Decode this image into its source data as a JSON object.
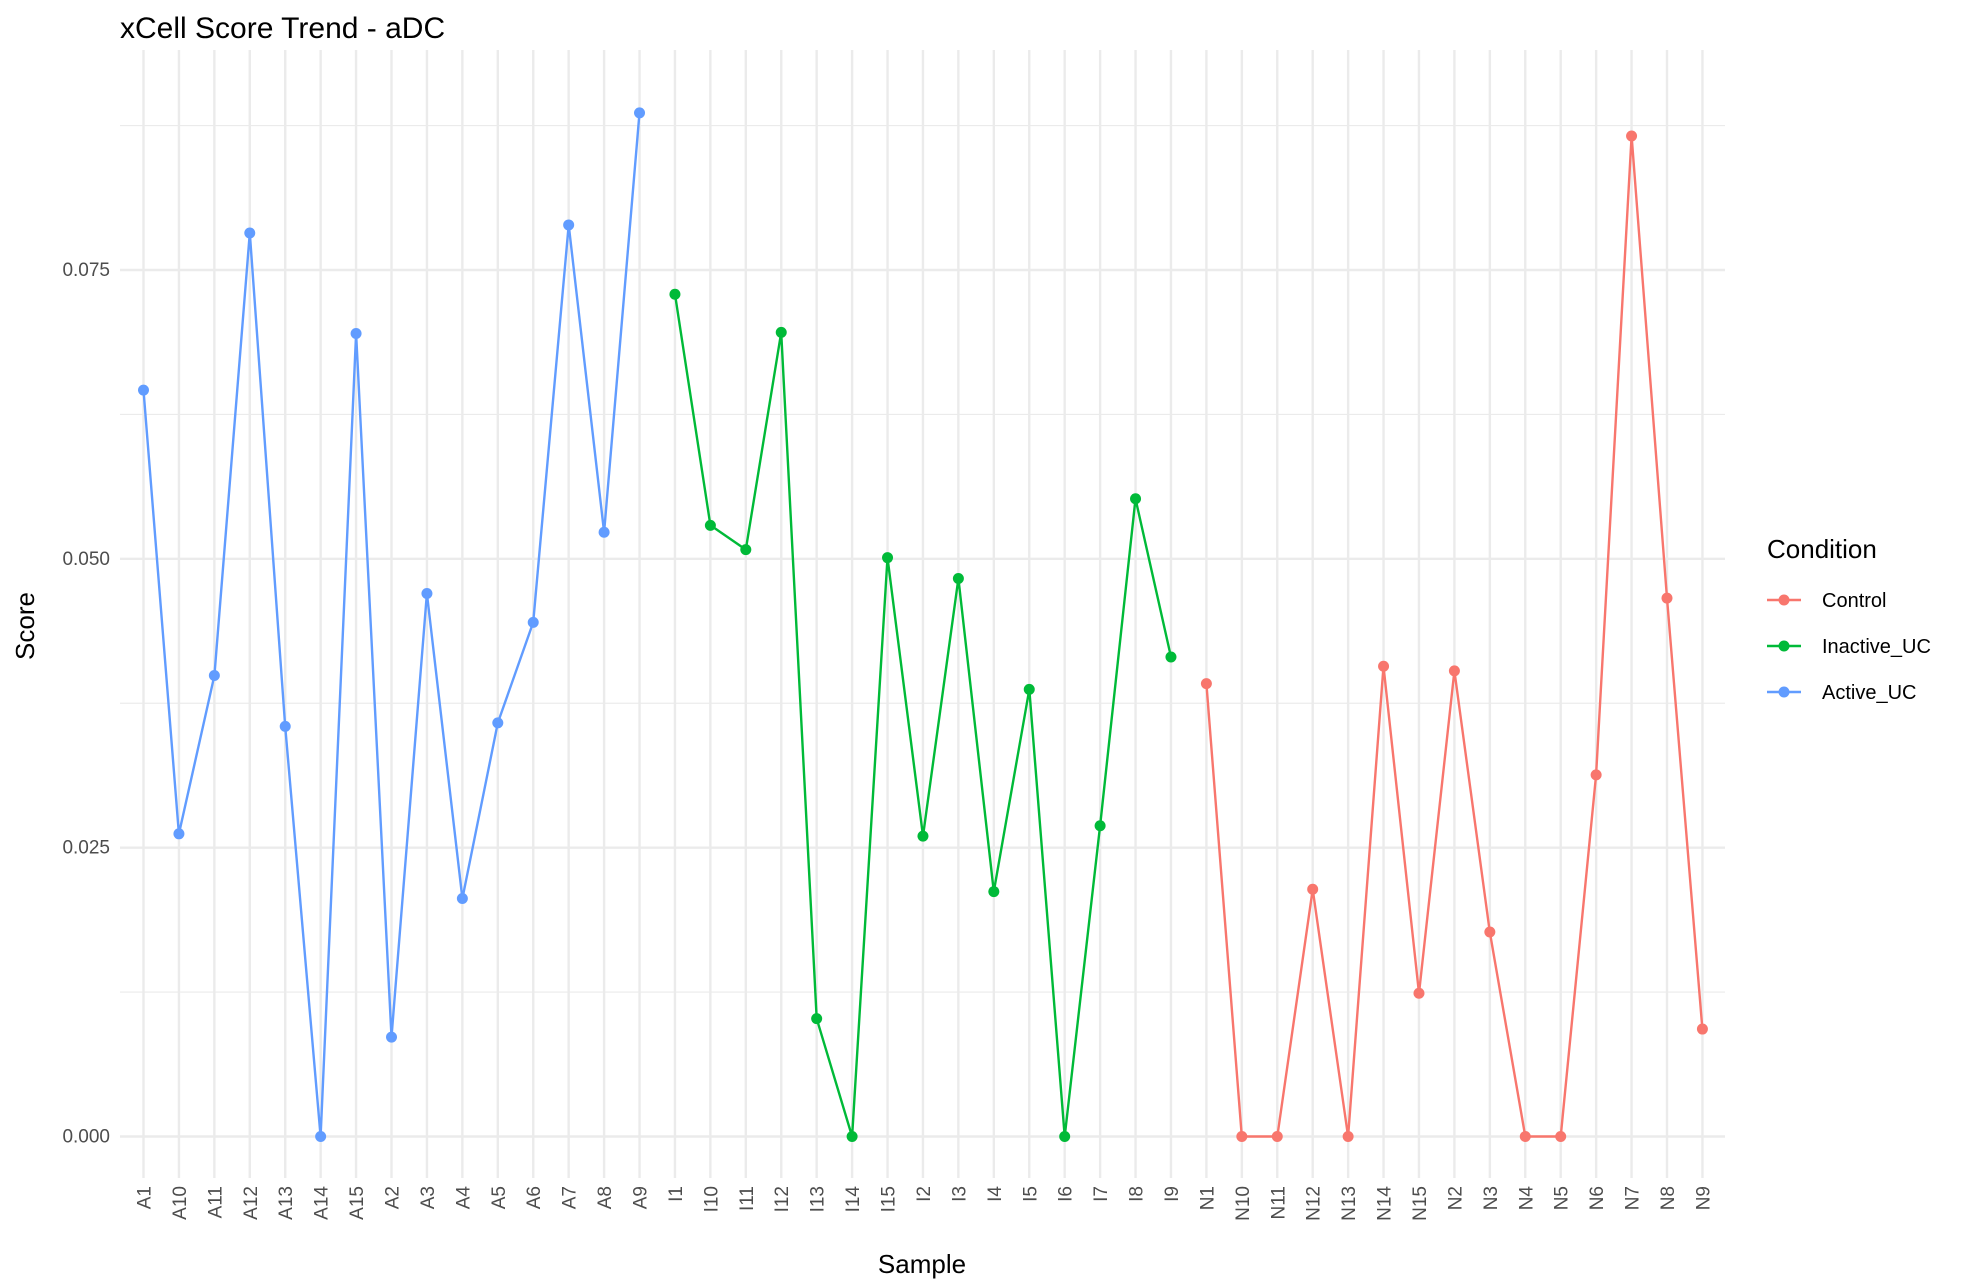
{
  "chart_data": {
    "type": "line",
    "title": "xCell Score Trend - aDC",
    "xlabel": "Sample",
    "ylabel": "Score",
    "ylim": [
      -0.0035,
      0.09
    ],
    "yticks": [
      0.0,
      0.025,
      0.05,
      0.075
    ],
    "ytick_labels": [
      "0.000",
      "0.025",
      "0.050",
      "0.075"
    ],
    "grid": true,
    "legend_position": "right",
    "legend_title": "Condition",
    "categories": [
      "A1",
      "A10",
      "A11",
      "A12",
      "A13",
      "A14",
      "A15",
      "A2",
      "A3",
      "A4",
      "A5",
      "A6",
      "A7",
      "A8",
      "A9",
      "I1",
      "I10",
      "I11",
      "I12",
      "I13",
      "I14",
      "I15",
      "I2",
      "I3",
      "I4",
      "I5",
      "I6",
      "I7",
      "I8",
      "I9",
      "N1",
      "N10",
      "N11",
      "N12",
      "N13",
      "N14",
      "N15",
      "N2",
      "N3",
      "N4",
      "N5",
      "N6",
      "N7",
      "N8",
      "N9"
    ],
    "series": [
      {
        "name": "Control",
        "color": "#F8766D",
        "x": [
          "N1",
          "N10",
          "N11",
          "N12",
          "N13",
          "N14",
          "N15",
          "N2",
          "N3",
          "N4",
          "N5",
          "N6",
          "N7",
          "N8",
          "N9"
        ],
        "values": [
          0.0392,
          0.0,
          0.0,
          0.0214,
          0.0,
          0.0407,
          0.0124,
          0.0403,
          0.0177,
          0.0,
          0.0,
          0.0313,
          0.0866,
          0.0466,
          0.0093
        ]
      },
      {
        "name": "Inactive_UC",
        "color": "#00BA38",
        "x": [
          "I1",
          "I10",
          "I11",
          "I12",
          "I13",
          "I14",
          "I15",
          "I2",
          "I3",
          "I4",
          "I5",
          "I6",
          "I7",
          "I8",
          "I9"
        ],
        "values": [
          0.0729,
          0.0529,
          0.0508,
          0.0696,
          0.0102,
          0.0,
          0.0501,
          0.026,
          0.0483,
          0.0212,
          0.0387,
          0.0,
          0.0269,
          0.0552,
          0.0415
        ]
      },
      {
        "name": "Active_UC",
        "color": "#619CFF",
        "x": [
          "A1",
          "A10",
          "A11",
          "A12",
          "A13",
          "A14",
          "A15",
          "A2",
          "A3",
          "A4",
          "A5",
          "A6",
          "A7",
          "A8",
          "A9"
        ],
        "values": [
          0.0646,
          0.0262,
          0.0399,
          0.0782,
          0.0355,
          0.0,
          0.0695,
          0.0086,
          0.047,
          0.0206,
          0.0358,
          0.0445,
          0.0789,
          0.0523,
          0.0886
        ]
      }
    ]
  }
}
